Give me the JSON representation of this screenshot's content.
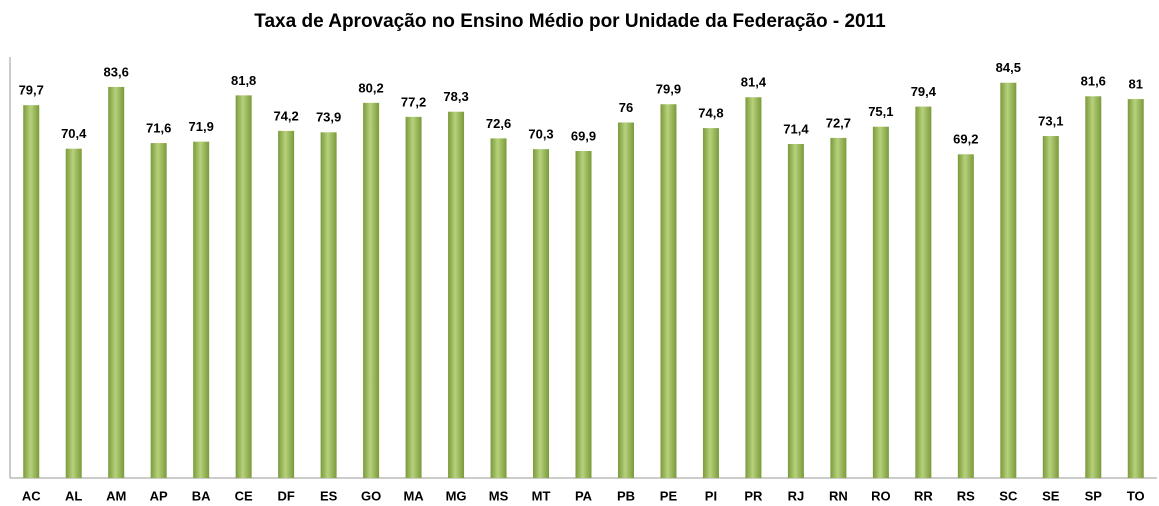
{
  "chart_data": {
    "type": "bar",
    "title": "Taxa de Aprovação no Ensino Médio por Unidade da Federação - 2011",
    "categories": [
      "AC",
      "AL",
      "AM",
      "AP",
      "BA",
      "CE",
      "DF",
      "ES",
      "GO",
      "MA",
      "MG",
      "MS",
      "MT",
      "PA",
      "PB",
      "PE",
      "PI",
      "PR",
      "RJ",
      "RN",
      "RO",
      "RR",
      "RS",
      "SC",
      "SE",
      "SP",
      "TO"
    ],
    "values": [
      79.7,
      70.4,
      83.6,
      71.6,
      71.9,
      81.8,
      74.2,
      73.9,
      80.2,
      77.2,
      78.3,
      72.6,
      70.3,
      69.9,
      76,
      79.9,
      74.8,
      81.4,
      71.4,
      72.7,
      75.1,
      79.4,
      69.2,
      84.5,
      73.1,
      81.6,
      81
    ],
    "value_labels": [
      "79,7",
      "70,4",
      "83,6",
      "71,6",
      "71,9",
      "81,8",
      "74,2",
      "73,9",
      "80,2",
      "77,2",
      "78,3",
      "72,6",
      "70,3",
      "69,9",
      "76",
      "79,9",
      "74,8",
      "81,4",
      "71,4",
      "72,7",
      "75,1",
      "79,4",
      "69,2",
      "84,5",
      "73,1",
      "81,6",
      "81"
    ],
    "color": "#7a9a3a",
    "ylim": [
      0,
      90
    ],
    "grid": false
  }
}
